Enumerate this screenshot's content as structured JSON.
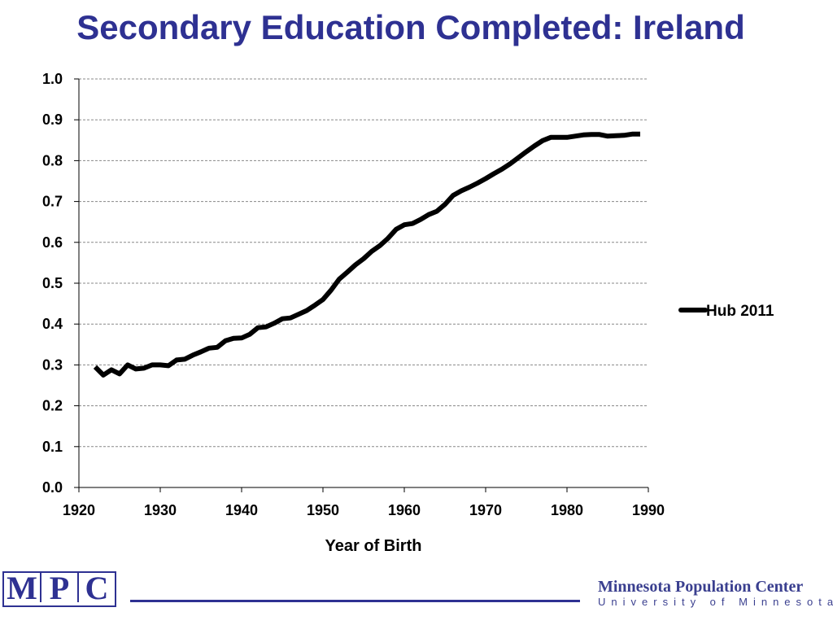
{
  "slide": {
    "title": "Secondary Education Completed: Ireland"
  },
  "chart_data": {
    "type": "line",
    "title": "",
    "xlabel": "Year of Birth",
    "ylabel": "",
    "xlim": [
      1920,
      1990
    ],
    "ylim": [
      0.0,
      1.0
    ],
    "x_ticks": [
      "1920",
      "1930",
      "1940",
      "1950",
      "1960",
      "1970",
      "1980",
      "1990"
    ],
    "y_ticks": [
      "0.0",
      "0.1",
      "0.2",
      "0.3",
      "0.4",
      "0.5",
      "0.6",
      "0.7",
      "0.8",
      "0.9",
      "1.0"
    ],
    "grid": "horizontal dashed",
    "legend": "right",
    "series": [
      {
        "name": "Hub 2011",
        "color": "#000000",
        "x": [
          1922,
          1923,
          1924,
          1925,
          1926,
          1927,
          1928,
          1929,
          1930,
          1931,
          1932,
          1933,
          1934,
          1935,
          1936,
          1937,
          1938,
          1939,
          1940,
          1941,
          1942,
          1943,
          1944,
          1945,
          1946,
          1947,
          1948,
          1949,
          1950,
          1951,
          1952,
          1953,
          1954,
          1955,
          1956,
          1957,
          1958,
          1959,
          1960,
          1961,
          1962,
          1963,
          1964,
          1965,
          1966,
          1967,
          1968,
          1969,
          1970,
          1971,
          1972,
          1973,
          1974,
          1975,
          1976,
          1977,
          1978,
          1979,
          1980,
          1981,
          1982,
          1983,
          1984,
          1985,
          1986,
          1987,
          1988,
          1989
        ],
        "y": [
          0.295,
          0.275,
          0.288,
          0.278,
          0.3,
          0.29,
          0.292,
          0.3,
          0.3,
          0.298,
          0.312,
          0.314,
          0.324,
          0.332,
          0.341,
          0.343,
          0.359,
          0.365,
          0.366,
          0.375,
          0.391,
          0.393,
          0.402,
          0.413,
          0.415,
          0.424,
          0.433,
          0.446,
          0.46,
          0.483,
          0.51,
          0.527,
          0.545,
          0.56,
          0.578,
          0.592,
          0.61,
          0.632,
          0.643,
          0.646,
          0.656,
          0.668,
          0.676,
          0.693,
          0.715,
          0.726,
          0.735,
          0.745,
          0.756,
          0.768,
          0.779,
          0.792,
          0.807,
          0.822,
          0.836,
          0.849,
          0.857,
          0.857,
          0.857,
          0.86,
          0.863,
          0.864,
          0.864,
          0.86,
          0.861,
          0.862,
          0.865,
          0.865
        ]
      }
    ]
  },
  "footer": {
    "logo_letters": [
      "M",
      "P",
      "C"
    ],
    "org_name": "Minnesota Population Center",
    "org_sub": "University of Minnesota",
    "brand_color": "#2e3192"
  }
}
